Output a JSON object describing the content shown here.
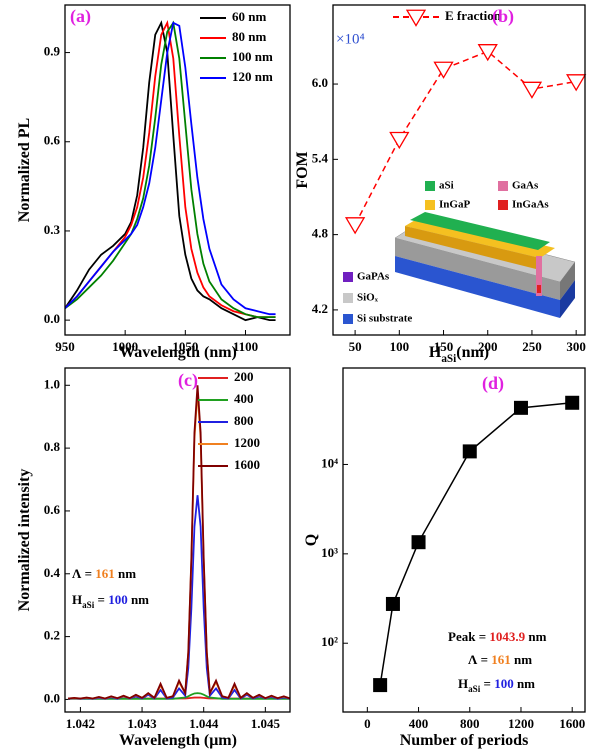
{
  "chart_data": [
    {
      "type": "line",
      "panel_label": "(a)",
      "xlabel": [
        {
          "text": "Wavelength (nm)"
        }
      ],
      "ylabel": [
        {
          "text": "Normalized PL"
        }
      ],
      "x": [
        950,
        960,
        970,
        980,
        990,
        1000,
        1005,
        1010,
        1015,
        1020,
        1025,
        1030,
        1035,
        1040,
        1045,
        1050,
        1055,
        1060,
        1065,
        1070,
        1080,
        1090,
        1100,
        1110,
        1120,
        1125
      ],
      "series": [
        {
          "name": "60  nm",
          "color": "#000000",
          "values": [
            0.04,
            0.1,
            0.17,
            0.22,
            0.25,
            0.29,
            0.33,
            0.42,
            0.58,
            0.8,
            0.96,
            1.0,
            0.9,
            0.62,
            0.35,
            0.22,
            0.14,
            0.1,
            0.08,
            0.07,
            0.04,
            0.02,
            0.0,
            0.01,
            0.0,
            0.0
          ]
        },
        {
          "name": "80  nm",
          "color": "#ff0000",
          "values": [
            0.04,
            0.08,
            0.13,
            0.18,
            0.23,
            0.28,
            0.32,
            0.38,
            0.48,
            0.63,
            0.82,
            0.96,
            1.0,
            0.88,
            0.62,
            0.38,
            0.24,
            0.16,
            0.11,
            0.08,
            0.05,
            0.03,
            0.02,
            0.01,
            0.01,
            0.01
          ]
        },
        {
          "name": "100 nm",
          "color": "#008000",
          "values": [
            0.04,
            0.07,
            0.11,
            0.15,
            0.2,
            0.26,
            0.29,
            0.34,
            0.41,
            0.52,
            0.68,
            0.86,
            0.97,
            1.0,
            0.88,
            0.66,
            0.44,
            0.29,
            0.19,
            0.13,
            0.07,
            0.04,
            0.02,
            0.01,
            0.01,
            0.01
          ]
        },
        {
          "name": "120 nm",
          "color": "#0000ff",
          "values": [
            0.04,
            0.08,
            0.13,
            0.18,
            0.23,
            0.27,
            0.29,
            0.32,
            0.38,
            0.46,
            0.58,
            0.74,
            0.9,
            1.0,
            0.99,
            0.85,
            0.66,
            0.48,
            0.34,
            0.24,
            0.12,
            0.07,
            0.04,
            0.03,
            0.02,
            0.02
          ]
        }
      ],
      "xlim": [
        950,
        1137
      ],
      "xticks": [
        950,
        1000,
        1050,
        1100
      ],
      "ylim": [
        -0.05,
        1.06
      ],
      "yticks": [
        {
          "value": 0,
          "label": "0.0"
        },
        0.3,
        0.6,
        0.9
      ],
      "legend": "upper right"
    },
    {
      "type": "line",
      "panel_label": "(b)",
      "xlabel": [
        {
          "text": "H"
        },
        {
          "text": "aSi",
          "sub": true
        },
        {
          "text": "(nm)"
        }
      ],
      "ylabel": [
        {
          "text": "FOM"
        }
      ],
      "y_multiplier": "×10⁴",
      "x": [
        50,
        100,
        150,
        200,
        250,
        300
      ],
      "series": [
        {
          "name": "E fraction",
          "color": "#ff0000",
          "marker": "triangle-down",
          "line_style": "dashed",
          "values": [
            4.88,
            5.56,
            6.12,
            6.26,
            5.96,
            6.02
          ]
        }
      ],
      "xlim": [
        25,
        310
      ],
      "xticks": [
        50,
        100,
        150,
        200,
        250,
        300
      ],
      "ylim": [
        4.0,
        6.63
      ],
      "yticks": [
        4.2,
        4.8,
        5.4,
        {
          "value": 6,
          "label": "6.0"
        }
      ],
      "legend": "upper right",
      "inset_labels": [
        "aSi",
        "GaAs",
        "InGaP",
        "InGaAs",
        "GaPAs",
        "SiOₓ",
        "Si substrate"
      ]
    },
    {
      "type": "line",
      "panel_label": "(c)",
      "xlabel": [
        {
          "text": "Wavelength (μm)"
        }
      ],
      "ylabel": [
        {
          "text": "Normalized intensity"
        }
      ],
      "x": [
        1.0418,
        1.0419,
        1.042,
        1.0421,
        1.0422,
        1.0423,
        1.0424,
        1.0425,
        1.0426,
        1.0427,
        1.0428,
        1.0429,
        1.043,
        1.0431,
        1.0432,
        1.0433,
        1.0434,
        1.0435,
        1.0436,
        1.0437,
        1.04375,
        1.0438,
        1.04385,
        1.0439,
        1.04395,
        1.044,
        1.04405,
        1.0441,
        1.0442,
        1.0443,
        1.0444,
        1.0445,
        1.0446,
        1.0447,
        1.0448,
        1.0449,
        1.045,
        1.0451,
        1.0452,
        1.0453,
        1.0454
      ],
      "series": [
        {
          "name": "200",
          "color": "#e02020",
          "values": [
            0.003,
            0.003,
            0.003,
            0.003,
            0.003,
            0.003,
            0.003,
            0.003,
            0.003,
            0.003,
            0.003,
            0.003,
            0.003,
            0.003,
            0.003,
            0.003,
            0.003,
            0.003,
            0.003,
            0.003,
            0.004,
            0.005,
            0.006,
            0.006,
            0.006,
            0.005,
            0.004,
            0.003,
            0.003,
            0.003,
            0.003,
            0.003,
            0.003,
            0.003,
            0.003,
            0.003,
            0.003,
            0.003,
            0.003,
            0.003,
            0.003
          ]
        },
        {
          "name": "400",
          "color": "#20a020",
          "values": [
            0.002,
            0.002,
            0.002,
            0.002,
            0.002,
            0.002,
            0.002,
            0.002,
            0.002,
            0.002,
            0.002,
            0.002,
            0.002,
            0.002,
            0.002,
            0.002,
            0.002,
            0.002,
            0.004,
            0.006,
            0.01,
            0.015,
            0.019,
            0.02,
            0.019,
            0.015,
            0.01,
            0.006,
            0.004,
            0.002,
            0.002,
            0.002,
            0.002,
            0.002,
            0.002,
            0.002,
            0.002,
            0.002,
            0.002,
            0.002,
            0.002
          ]
        },
        {
          "name": "800",
          "color": "#2020e0",
          "values": [
            0.002,
            0.003,
            0.002,
            0.004,
            0.002,
            0.005,
            0.002,
            0.007,
            0.002,
            0.01,
            0.003,
            0.01,
            0.003,
            0.015,
            0.003,
            0.03,
            0.003,
            0.006,
            0.035,
            0.012,
            0.1,
            0.29,
            0.55,
            0.65,
            0.55,
            0.29,
            0.1,
            0.012,
            0.035,
            0.006,
            0.003,
            0.03,
            0.003,
            0.015,
            0.003,
            0.01,
            0.003,
            0.008,
            0.002,
            0.006,
            0.002
          ]
        },
        {
          "name": "1200",
          "color": "#f08020",
          "values": [
            0.003,
            0.004,
            0.003,
            0.005,
            0.003,
            0.007,
            0.003,
            0.009,
            0.004,
            0.011,
            0.004,
            0.014,
            0.005,
            0.019,
            0.005,
            0.045,
            0.005,
            0.01,
            0.055,
            0.02,
            0.15,
            0.44,
            0.83,
            0.98,
            0.83,
            0.44,
            0.15,
            0.02,
            0.055,
            0.01,
            0.005,
            0.045,
            0.005,
            0.019,
            0.005,
            0.014,
            0.004,
            0.011,
            0.004,
            0.009,
            0.003
          ]
        },
        {
          "name": "1600",
          "color": "#800000",
          "values": [
            0.003,
            0.005,
            0.003,
            0.006,
            0.003,
            0.008,
            0.003,
            0.01,
            0.004,
            0.012,
            0.004,
            0.015,
            0.005,
            0.02,
            0.005,
            0.05,
            0.005,
            0.01,
            0.06,
            0.02,
            0.15,
            0.45,
            0.85,
            1.0,
            0.85,
            0.45,
            0.15,
            0.02,
            0.06,
            0.01,
            0.005,
            0.05,
            0.005,
            0.02,
            0.005,
            0.015,
            0.004,
            0.012,
            0.004,
            0.01,
            0.003
          ]
        }
      ],
      "xlim": [
        1.04175,
        1.0454
      ],
      "xticks": [
        1.042,
        1.043,
        1.044,
        1.045
      ],
      "ylim": [
        -0.04,
        1.055
      ],
      "yticks": [
        {
          "value": 0,
          "label": "0.0"
        },
        0.2,
        0.4,
        0.6,
        0.8,
        {
          "value": 1,
          "label": "1.0"
        }
      ],
      "legend": "upper right",
      "annotations": [
        [
          {
            "text": "Λ = "
          },
          {
            "text": "161",
            "color": "#f08020"
          },
          {
            "text": " nm"
          }
        ],
        [
          {
            "text": "H"
          },
          {
            "text": "aSi",
            "sub": true
          },
          {
            "text": " = "
          },
          {
            "text": "100",
            "color": "#2020e0"
          },
          {
            "text": " nm"
          }
        ]
      ]
    },
    {
      "type": "line",
      "panel_label": "(d)",
      "xlabel": [
        {
          "text": "Number of periods"
        }
      ],
      "ylabel": [
        {
          "text": "Q"
        }
      ],
      "x": [
        100,
        200,
        400,
        800,
        1200,
        1600
      ],
      "series": [
        {
          "color": "#000000",
          "marker": "square",
          "line_style": "solid",
          "values": [
            34,
            275,
            1350,
            14000,
            43000,
            49000
          ]
        }
      ],
      "xlim": [
        -190,
        1700
      ],
      "xticks": [
        0,
        400,
        800,
        1200,
        1600
      ],
      "ylim": [
        17,
        120000
      ],
      "yscale": "log",
      "yticks": [
        {
          "value": 100,
          "label": "10²"
        },
        {
          "value": 1000,
          "label": "10³"
        },
        {
          "value": 10000,
          "label": "10⁴"
        }
      ],
      "annotations": [
        [
          {
            "text": "Peak = "
          },
          {
            "text": "1043.9",
            "color": "#e02020"
          },
          {
            "text": " nm"
          }
        ],
        [
          {
            "text": "Λ = "
          },
          {
            "text": "161",
            "color": "#f08020"
          },
          {
            "text": " nm"
          }
        ],
        [
          {
            "text": "H"
          },
          {
            "text": "aSi",
            "sub": true
          },
          {
            "text": " = "
          },
          {
            "text": "100",
            "color": "#2020e0"
          },
          {
            "text": " nm"
          }
        ]
      ]
    }
  ]
}
